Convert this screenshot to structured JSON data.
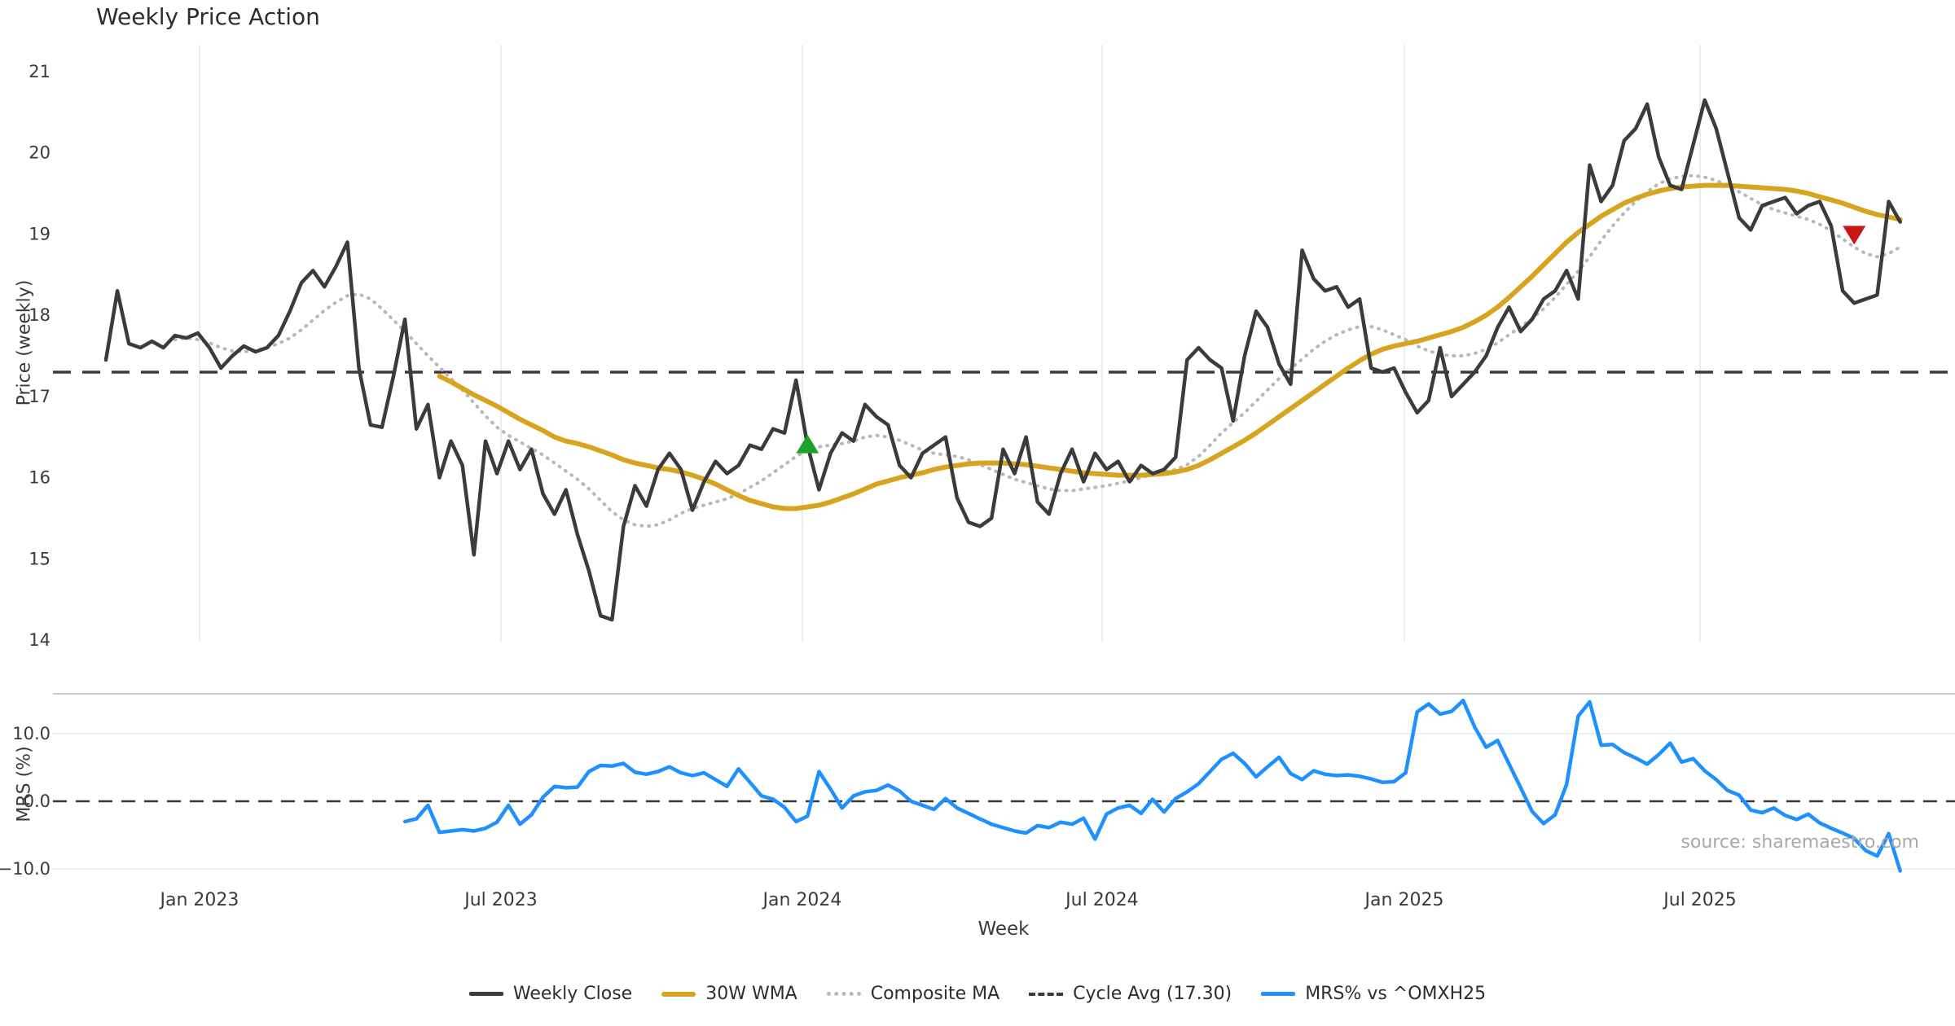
{
  "title": "Weekly Price Action",
  "watermark": "source: sharemaestro.com",
  "legend": [
    {
      "label": "Weekly Close",
      "swatch": "solid",
      "color": "#3b3b3b"
    },
    {
      "label": "30W WMA",
      "swatch": "thick",
      "color": "#d6a41e"
    },
    {
      "label": "Composite MA",
      "swatch": "dotted",
      "color": "#b8b8b8"
    },
    {
      "label": "Cycle Avg (17.30)",
      "swatch": "dashed",
      "color": "#3a3a3a"
    },
    {
      "label": "MRS% vs ^OMXH25",
      "swatch": "solid",
      "color": "#1e90ff"
    }
  ],
  "chart_data": {
    "type": "line",
    "title": "Weekly Price Action",
    "xlabel": "Week",
    "x_axis": {
      "unit": "week",
      "n_points": 157,
      "range_note": "weekly data from Nov 2022 to Oct 2025",
      "ticks": [
        {
          "label": "Jan 2023",
          "week_index": 8.14
        },
        {
          "label": "Jul 2023",
          "week_index": 34.35
        },
        {
          "label": "Jan 2024",
          "week_index": 60.55
        },
        {
          "label": "Jul 2024",
          "week_index": 86.61
        },
        {
          "label": "Jan 2025",
          "week_index": 112.89
        },
        {
          "label": "Jul 2025",
          "week_index": 138.6
        }
      ]
    },
    "price_panel": {
      "ylabel": "Price (weekly)",
      "ylim": [
        13.9,
        21.1
      ],
      "yticks": [
        "21",
        "20",
        "19",
        "18",
        "17",
        "16",
        "15",
        "14"
      ],
      "ytick_values": [
        21,
        20,
        19,
        18,
        17,
        16,
        15,
        14
      ],
      "grid": "vertical-only",
      "cycle_avg": 17.3,
      "series": [
        {
          "name": "Weekly Close",
          "color": "#3b3b3b",
          "style": "solid",
          "start_index": 0,
          "values": [
            17.45,
            18.3,
            17.65,
            17.6,
            17.68,
            17.6,
            17.75,
            17.72,
            17.78,
            17.6,
            17.35,
            17.5,
            17.62,
            17.55,
            17.6,
            17.75,
            18.05,
            18.4,
            18.55,
            18.35,
            18.6,
            18.9,
            17.35,
            16.65,
            16.62,
            17.25,
            17.95,
            16.6,
            16.9,
            16.0,
            16.45,
            16.15,
            15.05,
            16.45,
            16.05,
            16.45,
            16.1,
            16.35,
            15.8,
            15.55,
            15.85,
            15.3,
            14.85,
            14.3,
            14.25,
            15.4,
            15.9,
            15.65,
            16.1,
            16.3,
            16.1,
            15.6,
            15.95,
            16.2,
            16.05,
            16.15,
            16.4,
            16.35,
            16.6,
            16.55,
            17.2,
            16.4,
            15.85,
            16.3,
            16.55,
            16.45,
            16.9,
            16.75,
            16.65,
            16.15,
            16.0,
            16.3,
            16.4,
            16.5,
            15.75,
            15.45,
            15.4,
            15.5,
            16.35,
            16.05,
            16.5,
            15.7,
            15.55,
            16.05,
            16.35,
            15.95,
            16.3,
            16.1,
            16.2,
            15.95,
            16.15,
            16.05,
            16.1,
            16.25,
            17.45,
            17.6,
            17.45,
            17.35,
            16.7,
            17.5,
            18.05,
            17.85,
            17.4,
            17.15,
            18.8,
            18.45,
            18.3,
            18.35,
            18.1,
            18.2,
            17.35,
            17.3,
            17.35,
            17.05,
            16.8,
            16.95,
            17.6,
            17.0,
            17.15,
            17.3,
            17.5,
            17.85,
            18.1,
            17.8,
            17.95,
            18.2,
            18.3,
            18.55,
            18.2,
            19.85,
            19.4,
            19.6,
            20.15,
            20.3,
            20.6,
            19.95,
            19.6,
            19.55,
            20.1,
            20.65,
            20.3,
            19.75,
            19.2,
            19.05,
            19.35,
            19.4,
            19.45,
            19.25,
            19.35,
            19.4,
            19.1,
            18.3,
            18.15,
            18.2,
            18.25,
            19.4,
            19.15
          ]
        },
        {
          "name": "30W WMA",
          "color": "#d6a41e",
          "style": "solid-thick",
          "start_index": 29,
          "values": [
            17.25,
            17.18,
            17.1,
            17.02,
            16.95,
            16.88,
            16.8,
            16.72,
            16.65,
            16.58,
            16.5,
            16.45,
            16.42,
            16.38,
            16.33,
            16.28,
            16.22,
            16.18,
            16.15,
            16.12,
            16.1,
            16.07,
            16.03,
            15.98,
            15.92,
            15.85,
            15.78,
            15.72,
            15.68,
            15.64,
            15.62,
            15.62,
            15.64,
            15.66,
            15.7,
            15.75,
            15.8,
            15.86,
            15.92,
            15.96,
            16.0,
            16.03,
            16.06,
            16.1,
            16.13,
            16.15,
            16.17,
            16.18,
            16.18,
            16.18,
            16.17,
            16.16,
            16.14,
            16.12,
            16.1,
            16.08,
            16.06,
            16.05,
            16.04,
            16.03,
            16.03,
            16.03,
            16.04,
            16.05,
            16.07,
            16.1,
            16.15,
            16.22,
            16.3,
            16.38,
            16.46,
            16.55,
            16.65,
            16.75,
            16.85,
            16.95,
            17.05,
            17.15,
            17.25,
            17.35,
            17.44,
            17.52,
            17.58,
            17.62,
            17.65,
            17.68,
            17.72,
            17.76,
            17.8,
            17.85,
            17.92,
            18.0,
            18.1,
            18.22,
            18.35,
            18.48,
            18.62,
            18.76,
            18.9,
            19.02,
            19.12,
            19.22,
            19.3,
            19.38,
            19.44,
            19.49,
            19.53,
            19.56,
            19.58,
            19.59,
            19.6,
            19.6,
            19.6,
            19.59,
            19.58,
            19.57,
            19.56,
            19.55,
            19.53,
            19.5,
            19.46,
            19.42,
            19.38,
            19.33,
            19.28,
            19.24,
            19.21,
            19.18
          ]
        },
        {
          "name": "Composite MA",
          "color": "#b8b8b8",
          "style": "dotted",
          "start_index": 6,
          "values": [
            17.7,
            17.72,
            17.7,
            17.66,
            17.6,
            17.56,
            17.55,
            17.57,
            17.6,
            17.65,
            17.72,
            17.82,
            17.94,
            18.06,
            18.16,
            18.24,
            18.26,
            18.2,
            18.08,
            17.94,
            17.8,
            17.65,
            17.5,
            17.36,
            17.22,
            17.08,
            16.92,
            16.76,
            16.62,
            16.52,
            16.44,
            16.36,
            16.28,
            16.18,
            16.08,
            15.98,
            15.86,
            15.72,
            15.58,
            15.48,
            15.42,
            15.4,
            15.42,
            15.48,
            15.56,
            15.62,
            15.66,
            15.7,
            15.74,
            15.8,
            15.88,
            15.96,
            16.06,
            16.16,
            16.26,
            16.34,
            16.38,
            16.4,
            16.42,
            16.45,
            16.5,
            16.52,
            16.5,
            16.46,
            16.4,
            16.34,
            16.3,
            16.28,
            16.26,
            16.22,
            16.16,
            16.1,
            16.04,
            15.98,
            15.94,
            15.9,
            15.86,
            15.84,
            15.84,
            15.86,
            15.88,
            15.9,
            15.93,
            15.96,
            16.0,
            16.04,
            16.07,
            16.1,
            16.16,
            16.26,
            16.4,
            16.55,
            16.68,
            16.8,
            16.94,
            17.08,
            17.22,
            17.34,
            17.46,
            17.58,
            17.68,
            17.76,
            17.82,
            17.86,
            17.86,
            17.82,
            17.76,
            17.7,
            17.62,
            17.56,
            17.52,
            17.5,
            17.5,
            17.53,
            17.58,
            17.66,
            17.76,
            17.86,
            17.96,
            18.08,
            18.22,
            18.38,
            18.54,
            18.72,
            18.92,
            19.1,
            19.26,
            19.4,
            19.52,
            19.62,
            19.68,
            19.71,
            19.72,
            19.7,
            19.66,
            19.6,
            19.52,
            19.44,
            19.36,
            19.3,
            19.26,
            19.22,
            19.18,
            19.12,
            19.04,
            18.94,
            18.84,
            18.76,
            18.72,
            18.76,
            18.84
          ]
        }
      ],
      "markers": [
        {
          "name": "buy-signal",
          "shape": "triangle-up",
          "color": "#1ea32a",
          "week_index": 61,
          "value": 16.4
        },
        {
          "name": "sell-signal",
          "shape": "triangle-down",
          "color": "#c81717",
          "week_index": 152,
          "value": 19.0
        }
      ]
    },
    "mrs_panel": {
      "ylabel": "MRS (%)",
      "ylim": [
        -11.5,
        16
      ],
      "yticks": [
        {
          "label": "10.0",
          "value": 10
        },
        {
          "label": "0.0",
          "value": 0
        },
        {
          "label": "−10.0",
          "value": -10
        }
      ],
      "zero_line": 0,
      "series": [
        {
          "name": "MRS% vs ^OMXH25",
          "color": "#1e90ff",
          "style": "solid",
          "start_index": 26,
          "values": [
            -3.0,
            -2.6,
            -0.6,
            -4.6,
            -4.4,
            -4.2,
            -4.4,
            -4.0,
            -3.1,
            -0.6,
            -3.4,
            -2.0,
            0.6,
            2.2,
            2.0,
            2.1,
            4.4,
            5.3,
            5.2,
            5.6,
            4.3,
            4.0,
            4.4,
            5.1,
            4.2,
            3.8,
            4.2,
            3.2,
            2.2,
            4.8,
            2.8,
            0.8,
            0.3,
            -0.9,
            -3.0,
            -2.2,
            4.4,
            1.8,
            -1.0,
            0.8,
            1.4,
            1.6,
            2.4,
            1.5,
            0.0,
            -0.6,
            -1.2,
            0.4,
            -1.0,
            -1.8,
            -2.6,
            -3.4,
            -3.9,
            -4.4,
            -4.7,
            -3.6,
            -3.9,
            -3.1,
            -3.4,
            -2.5,
            -5.6,
            -1.9,
            -1.0,
            -0.6,
            -1.8,
            0.3,
            -1.6,
            0.4,
            1.4,
            2.6,
            4.4,
            6.2,
            7.1,
            5.6,
            3.6,
            5.1,
            6.5,
            4.1,
            3.2,
            4.5,
            4.0,
            3.8,
            3.9,
            3.7,
            3.3,
            2.8,
            2.9,
            4.2,
            13.2,
            14.4,
            12.9,
            13.3,
            14.9,
            11.0,
            8.0,
            9.0,
            5.5,
            2.0,
            -1.5,
            -3.3,
            -2.0,
            2.5,
            12.6,
            14.7,
            8.3,
            8.4,
            7.2,
            6.4,
            5.5,
            6.9,
            8.6,
            5.8,
            6.3,
            4.5,
            3.2,
            1.6,
            0.9,
            -1.3,
            -1.7,
            -1.0,
            -2.1,
            -2.7,
            -1.9,
            -3.2,
            -4.0,
            -4.7,
            -5.5,
            -7.3,
            -8.1,
            -4.8,
            -10.3
          ]
        }
      ]
    }
  }
}
